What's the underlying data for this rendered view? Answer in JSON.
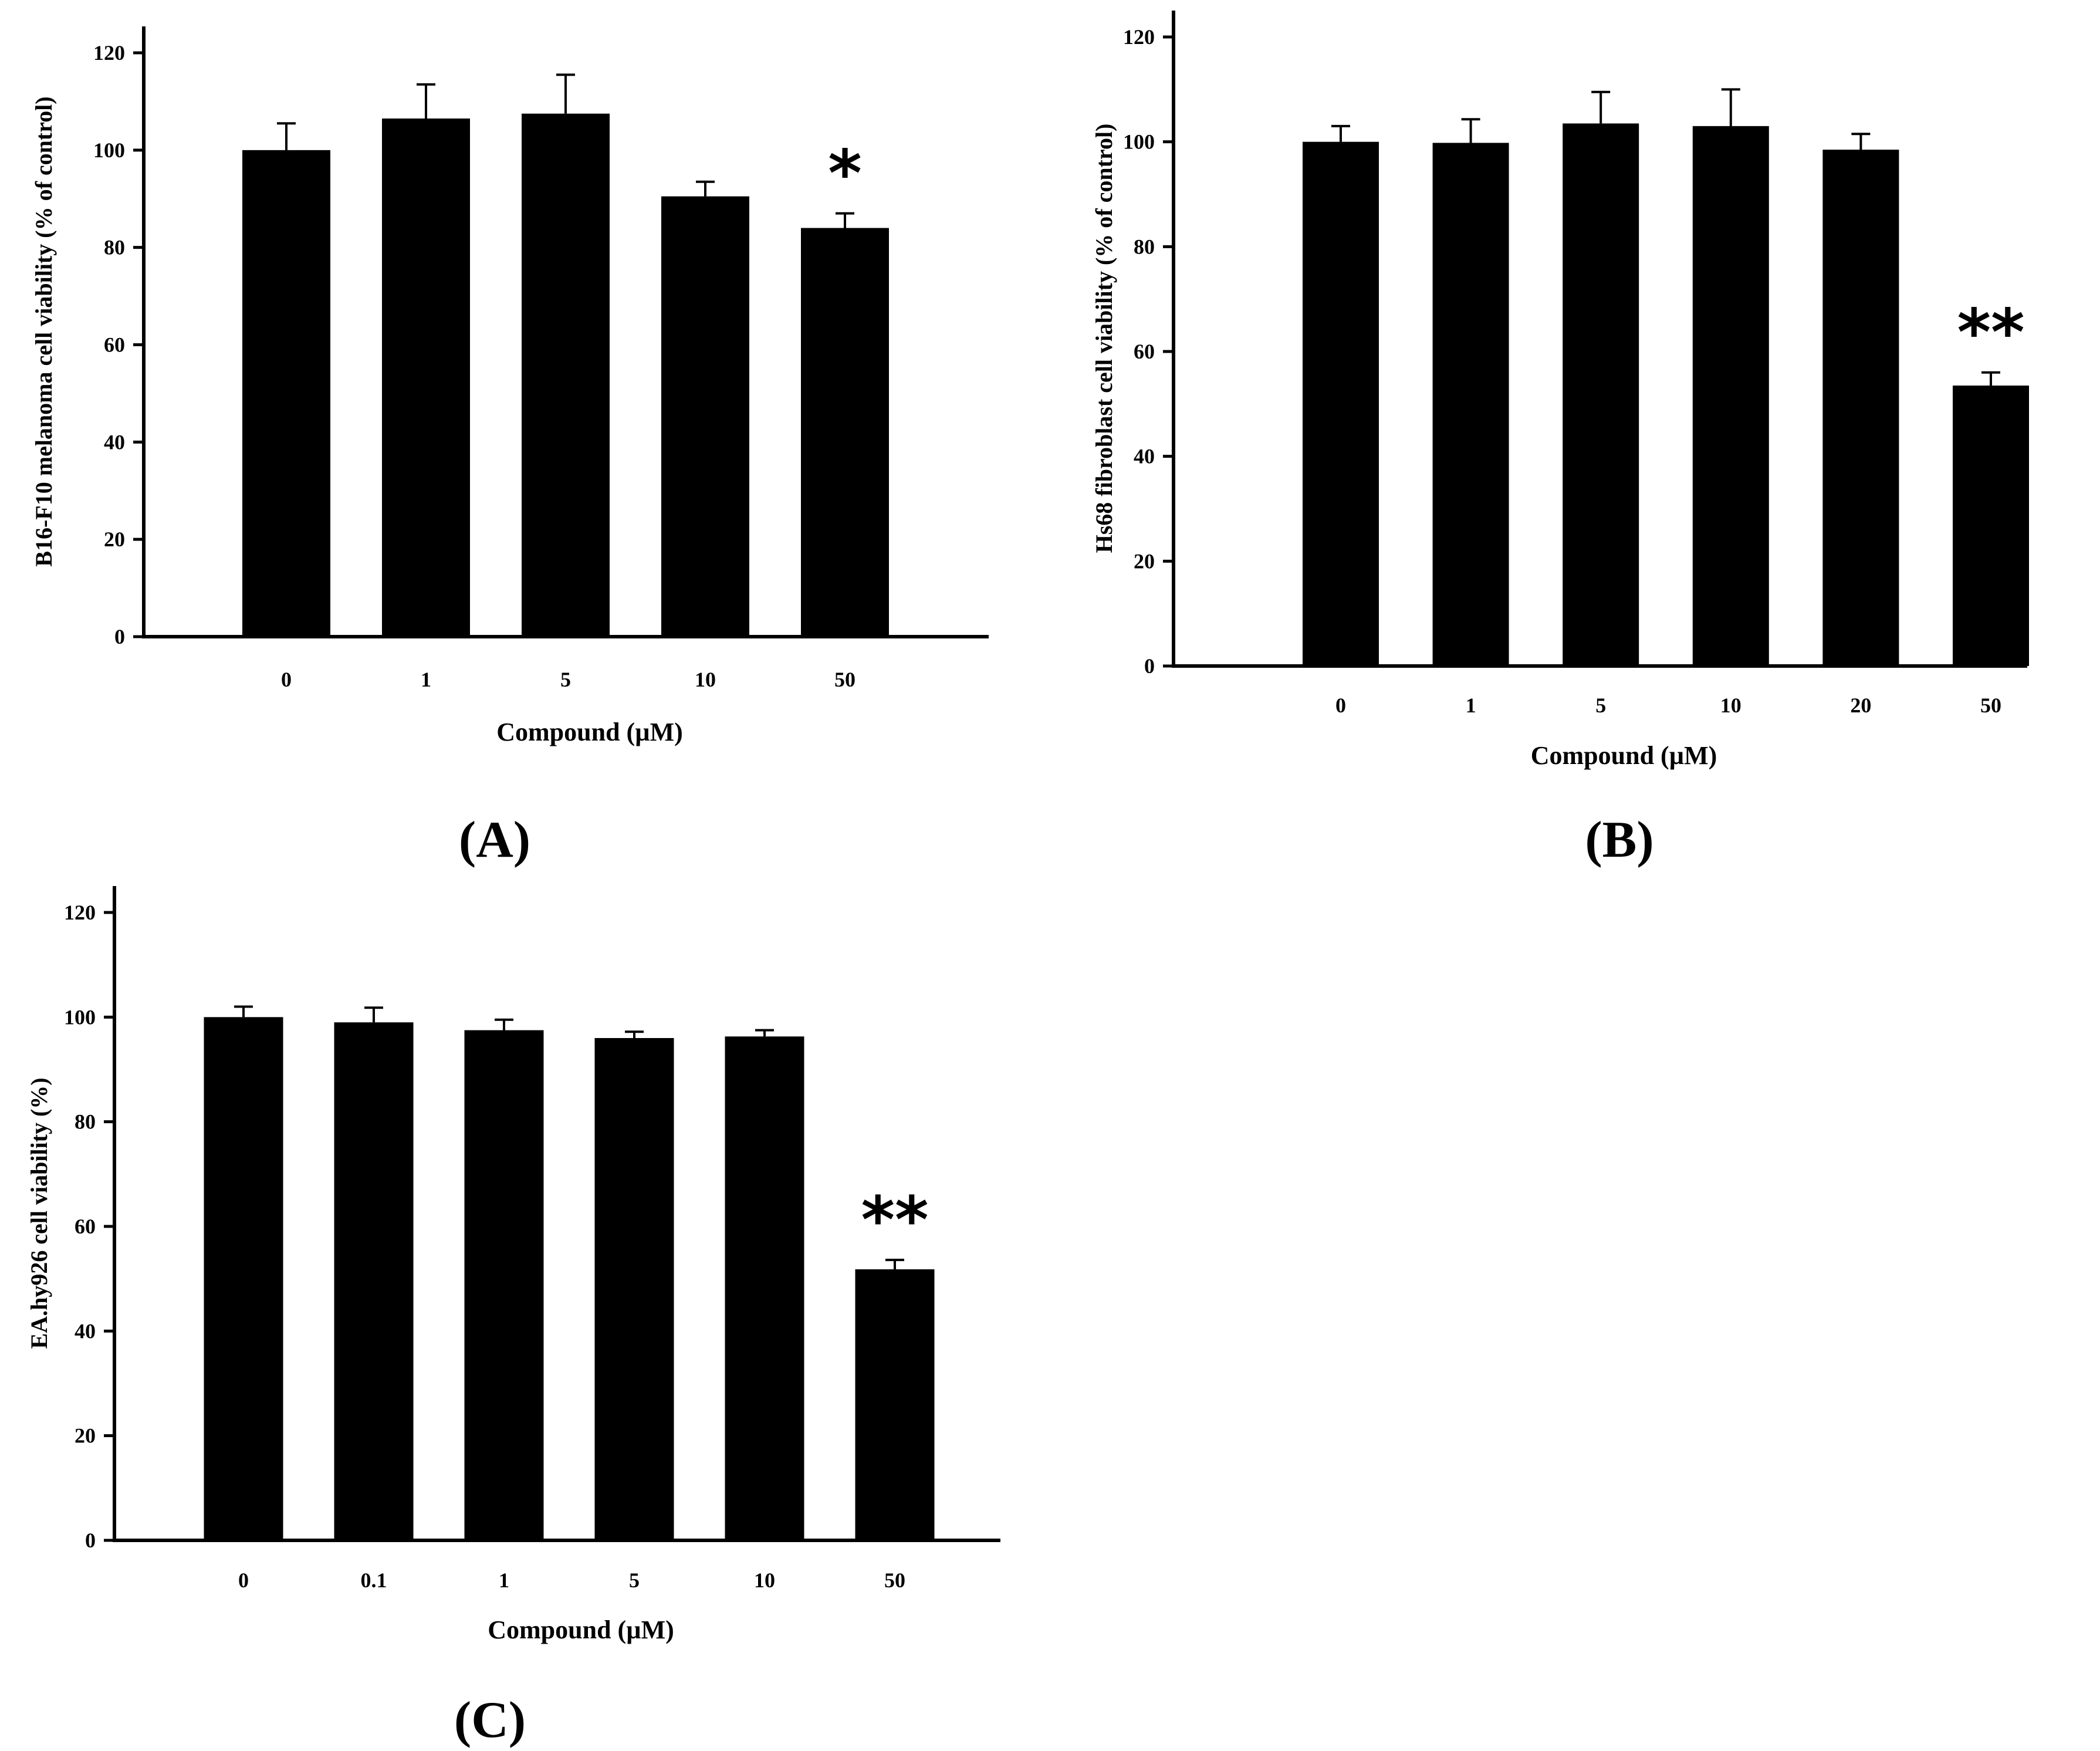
{
  "chart_data": [
    {
      "panel_label": "(A)",
      "type": "bar",
      "xlabel": "Compound (µM)",
      "ylabel": "B16-F10 melanoma cell viability (% of control)",
      "ylim": [
        0,
        120
      ],
      "yticks": [
        "0",
        "20",
        "40",
        "60",
        "80",
        "100",
        "120"
      ],
      "categories": [
        "0",
        "1",
        "5",
        "10",
        "50"
      ],
      "series": [
        {
          "values": [
            100,
            106.5,
            107.5,
            90.5,
            84
          ],
          "errors": [
            5.5,
            7,
            8,
            3,
            3
          ]
        }
      ],
      "significance": [
        "",
        "",
        "",
        "",
        "*"
      ],
      "bar_color": "#000000"
    },
    {
      "panel_label": "(B)",
      "type": "bar",
      "xlabel": "Compound (µM)",
      "ylabel": "Hs68 fibroblast cell viability (% of control)",
      "ylim": [
        0,
        120
      ],
      "yticks": [
        "0",
        "20",
        "40",
        "60",
        "80",
        "100",
        "120"
      ],
      "categories": [
        "0",
        "1",
        "5",
        "10",
        "20",
        "50"
      ],
      "series": [
        {
          "values": [
            100,
            99.8,
            103.5,
            103,
            98.5,
            53.5
          ],
          "errors": [
            3,
            4.5,
            6,
            7,
            3,
            2.5
          ]
        }
      ],
      "significance": [
        "",
        "",
        "",
        "",
        "",
        "**"
      ],
      "bar_color": "#000000"
    },
    {
      "panel_label": "(C)",
      "type": "bar",
      "xlabel": "Compound (µM)",
      "ylabel": "EA.hy926 cell viability (%)",
      "ylim": [
        0,
        120
      ],
      "yticks": [
        "0",
        "20",
        "40",
        "60",
        "80",
        "100",
        "120"
      ],
      "categories": [
        "0",
        "0.1",
        "1",
        "5",
        "10",
        "50"
      ],
      "series": [
        {
          "values": [
            100,
            99,
            97.5,
            96,
            96.3,
            51.8
          ],
          "errors": [
            2,
            2.8,
            2,
            1.2,
            1.2,
            1.8
          ]
        }
      ],
      "significance": [
        "",
        "",
        "",
        "",
        "",
        "**"
      ],
      "bar_color": "#000000"
    }
  ]
}
